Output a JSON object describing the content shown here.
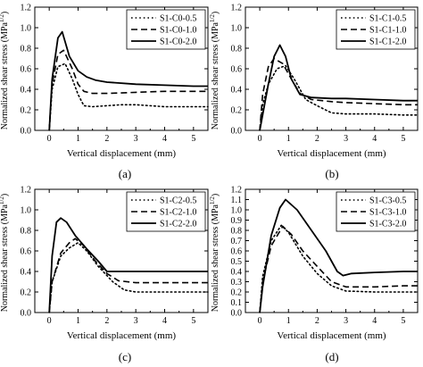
{
  "figure": {
    "panels": [
      "(a)",
      "(b)",
      "(c)",
      "(d)"
    ]
  },
  "chart_data": [
    {
      "type": "line",
      "panel_label": "(a)",
      "xlabel": "Vertical displacement (mm)",
      "ylabel": "Normalized shear stress (MPa",
      "ylabel_sup": "1/2",
      "ylabel_close": ")",
      "xlim": [
        -0.5,
        5.5
      ],
      "ylim": [
        0.0,
        1.2
      ],
      "xticks": [
        0,
        1,
        2,
        3,
        4,
        5
      ],
      "yticks": [
        0.0,
        0.2,
        0.4,
        0.6,
        0.8,
        1.0,
        1.2
      ],
      "legend_position": "top-right",
      "series": [
        {
          "name": "S1-C0-0.5",
          "style": "dotted",
          "x": [
            0,
            0.1,
            0.3,
            0.55,
            0.8,
            1.0,
            1.2,
            1.5,
            2.0,
            2.5,
            3.0,
            4.0,
            5.0,
            5.5
          ],
          "y": [
            0.0,
            0.4,
            0.62,
            0.65,
            0.5,
            0.35,
            0.24,
            0.23,
            0.24,
            0.25,
            0.25,
            0.23,
            0.23,
            0.23
          ]
        },
        {
          "name": "S1-C0-1.0",
          "style": "dashed",
          "x": [
            0,
            0.1,
            0.3,
            0.5,
            0.8,
            1.0,
            1.2,
            1.5,
            2.0,
            3.0,
            4.0,
            5.0,
            5.5
          ],
          "y": [
            0.0,
            0.45,
            0.74,
            0.78,
            0.6,
            0.45,
            0.38,
            0.36,
            0.36,
            0.37,
            0.38,
            0.38,
            0.38
          ]
        },
        {
          "name": "S1-C0-2.0",
          "style": "solid",
          "x": [
            0,
            0.1,
            0.3,
            0.45,
            0.7,
            1.0,
            1.3,
            1.6,
            2.0,
            3.0,
            4.0,
            5.0,
            5.5
          ],
          "y": [
            0.0,
            0.5,
            0.9,
            0.96,
            0.72,
            0.58,
            0.52,
            0.49,
            0.47,
            0.45,
            0.44,
            0.43,
            0.43
          ]
        }
      ]
    },
    {
      "type": "line",
      "panel_label": "(b)",
      "xlabel": "Vertical displacement (mm)",
      "ylabel": "Normalized shear stress (MPa",
      "ylabel_sup": "1/2",
      "ylabel_close": ")",
      "xlim": [
        -0.5,
        5.5
      ],
      "ylim": [
        0.0,
        1.2
      ],
      "xticks": [
        0,
        1,
        2,
        3,
        4,
        5
      ],
      "yticks": [
        0.0,
        0.2,
        0.4,
        0.6,
        0.8,
        1.0,
        1.2
      ],
      "legend_position": "top-right",
      "series": [
        {
          "name": "S1-C1-0.5",
          "style": "dotted",
          "x": [
            0,
            0.1,
            0.3,
            0.6,
            0.9,
            1.2,
            1.6,
            2.0,
            2.5,
            3.0,
            4.0,
            5.0,
            5.5
          ],
          "y": [
            0.0,
            0.25,
            0.45,
            0.6,
            0.63,
            0.5,
            0.3,
            0.24,
            0.17,
            0.16,
            0.16,
            0.15,
            0.15
          ]
        },
        {
          "name": "S1-C1-1.0",
          "style": "dashed",
          "x": [
            0,
            0.1,
            0.3,
            0.5,
            0.8,
            1.1,
            1.4,
            1.8,
            2.5,
            3.0,
            4.0,
            5.0,
            5.5
          ],
          "y": [
            0.0,
            0.35,
            0.62,
            0.7,
            0.65,
            0.5,
            0.36,
            0.3,
            0.28,
            0.27,
            0.26,
            0.25,
            0.25
          ]
        },
        {
          "name": "S1-C1-2.0",
          "style": "solid",
          "x": [
            0,
            0.1,
            0.3,
            0.5,
            0.7,
            0.9,
            1.1,
            1.4,
            1.8,
            2.5,
            3.0,
            4.0,
            5.0,
            5.5
          ],
          "y": [
            0.0,
            0.15,
            0.45,
            0.72,
            0.83,
            0.72,
            0.5,
            0.35,
            0.32,
            0.31,
            0.31,
            0.3,
            0.29,
            0.29
          ]
        }
      ]
    },
    {
      "type": "line",
      "panel_label": "(c)",
      "xlabel": "Vertical displacement (mm)",
      "ylabel": "Normalized shear stress (MPa",
      "ylabel_sup": "1/2",
      "ylabel_close": ")",
      "xlim": [
        -0.5,
        5.5
      ],
      "ylim": [
        0.0,
        1.2
      ],
      "xticks": [
        0,
        1,
        2,
        3,
        4,
        5
      ],
      "yticks": [
        0.0,
        0.2,
        0.4,
        0.6,
        0.8,
        1.0,
        1.2
      ],
      "legend_position": "top-right",
      "series": [
        {
          "name": "S1-C2-0.5",
          "style": "dotted",
          "x": [
            0,
            0.1,
            0.4,
            0.7,
            1.0,
            1.3,
            1.7,
            2.2,
            2.6,
            3.0,
            4.0,
            5.0,
            5.5
          ],
          "y": [
            0.0,
            0.3,
            0.55,
            0.63,
            0.68,
            0.6,
            0.45,
            0.3,
            0.22,
            0.2,
            0.2,
            0.2,
            0.2
          ]
        },
        {
          "name": "S1-C2-1.0",
          "style": "dashed",
          "x": [
            0,
            0.1,
            0.4,
            0.7,
            0.9,
            1.2,
            1.6,
            2.0,
            2.4,
            3.0,
            4.0,
            5.0,
            5.5
          ],
          "y": [
            0.0,
            0.3,
            0.58,
            0.68,
            0.72,
            0.65,
            0.5,
            0.38,
            0.31,
            0.29,
            0.29,
            0.29,
            0.29
          ]
        },
        {
          "name": "S1-C2-2.0",
          "style": "solid",
          "x": [
            0,
            0.1,
            0.25,
            0.4,
            0.6,
            0.9,
            1.3,
            1.7,
            2.0,
            2.5,
            3.0,
            4.0,
            5.0,
            5.5
          ],
          "y": [
            0.0,
            0.55,
            0.88,
            0.92,
            0.88,
            0.75,
            0.62,
            0.5,
            0.4,
            0.4,
            0.4,
            0.4,
            0.4,
            0.4
          ]
        }
      ]
    },
    {
      "type": "line",
      "panel_label": "(d)",
      "xlabel": "Vertical displacement (mm)",
      "ylabel": "Normalized shear stress (MPa",
      "ylabel_sup": "1/2",
      "ylabel_close": ")",
      "xlim": [
        -0.5,
        5.5
      ],
      "ylim": [
        0.0,
        1.2
      ],
      "xticks": [
        0,
        1,
        2,
        3,
        4,
        5
      ],
      "yticks": [
        0.0,
        0.1,
        0.2,
        0.3,
        0.4,
        0.5,
        0.6,
        0.7,
        0.8,
        0.9,
        1.0,
        1.1,
        1.2
      ],
      "legend_position": "top-right",
      "series": [
        {
          "name": "S1-C3-0.5",
          "style": "dotted",
          "x": [
            0,
            0.1,
            0.4,
            0.75,
            1.0,
            1.5,
            2.0,
            2.5,
            3.0,
            4.0,
            5.0,
            5.5
          ],
          "y": [
            0.0,
            0.35,
            0.7,
            0.85,
            0.78,
            0.55,
            0.38,
            0.26,
            0.21,
            0.2,
            0.2,
            0.2
          ]
        },
        {
          "name": "S1-C3-1.0",
          "style": "dashed",
          "x": [
            0,
            0.1,
            0.4,
            0.8,
            1.1,
            1.5,
            2.0,
            2.5,
            3.0,
            4.0,
            5.0,
            5.5
          ],
          "y": [
            0.0,
            0.3,
            0.65,
            0.84,
            0.76,
            0.6,
            0.45,
            0.3,
            0.25,
            0.25,
            0.26,
            0.26
          ]
        },
        {
          "name": "S1-C3-2.0",
          "style": "solid",
          "x": [
            0,
            0.1,
            0.4,
            0.7,
            0.9,
            1.3,
            1.8,
            2.3,
            2.7,
            2.9,
            3.2,
            4.0,
            5.0,
            5.5
          ],
          "y": [
            0.0,
            0.25,
            0.75,
            1.02,
            1.1,
            1.0,
            0.8,
            0.6,
            0.4,
            0.36,
            0.38,
            0.39,
            0.4,
            0.4
          ]
        }
      ]
    }
  ]
}
